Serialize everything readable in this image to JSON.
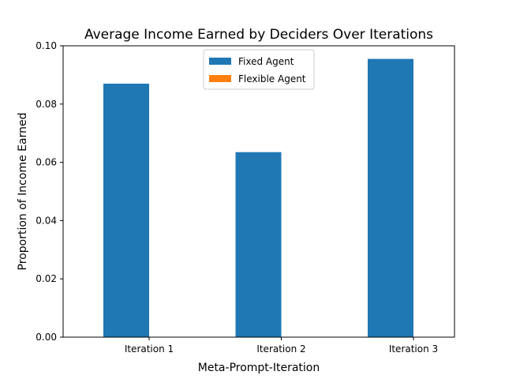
{
  "chart_data": {
    "type": "bar",
    "title": "Average Income Earned by Deciders Over Iterations",
    "xlabel": "Meta-Prompt-Iteration",
    "ylabel": "Proportion of Income Earned",
    "categories": [
      "Iteration 1",
      "Iteration 2",
      "Iteration 3"
    ],
    "series": [
      {
        "name": "Fixed Agent",
        "color": "#1f77b4",
        "values": [
          0.087,
          0.0635,
          0.0955
        ]
      },
      {
        "name": "Flexible Agent",
        "color": "#ff7f0e",
        "values": [
          0,
          0,
          0
        ]
      }
    ],
    "ylim": [
      0,
      0.1
    ],
    "yticks": [
      "0.00",
      "0.02",
      "0.04",
      "0.06",
      "0.08",
      "0.10"
    ],
    "grid": false,
    "legend_position": "top-center"
  }
}
